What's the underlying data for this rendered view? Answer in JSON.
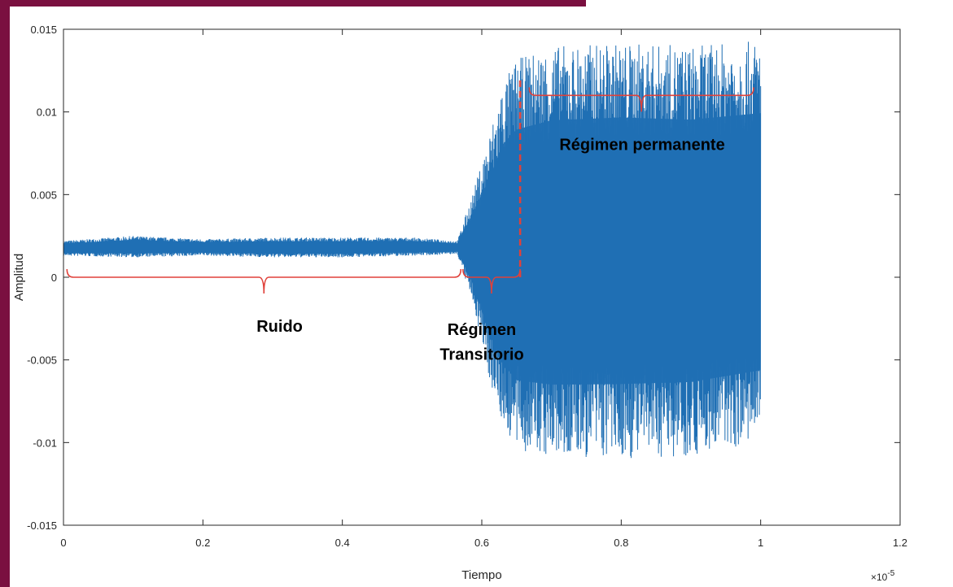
{
  "chart_data": {
    "type": "line",
    "title": "",
    "xlabel": "Tiempo",
    "ylabel": "Amplitud",
    "x_exponent_label": "×10",
    "x_exponent_power": "-5",
    "xlim": [
      0,
      1.2
    ],
    "ylim": [
      -0.015,
      0.015
    ],
    "x_ticks": [
      0,
      0.2,
      0.4,
      0.6,
      0.8,
      1,
      1.2
    ],
    "x_tick_labels": [
      "0",
      "0.2",
      "0.4",
      "0.6",
      "0.8",
      "1",
      "1.2"
    ],
    "y_ticks": [
      0.015,
      0.01,
      0.005,
      0,
      -0.005,
      -0.01,
      -0.015
    ],
    "y_tick_labels": [
      "0.015",
      "0.01",
      "0.005",
      "0",
      "-0.005",
      "-0.01",
      "-0.015"
    ],
    "grid": false,
    "series": [
      {
        "color": "#1f6fb4",
        "envelope": {
          "x": [
            0.0,
            0.1,
            0.2,
            0.3,
            0.4,
            0.5,
            0.565,
            0.59,
            0.61,
            0.63,
            0.65,
            0.7,
            0.8,
            0.9,
            1.0
          ],
          "upper": [
            0.0022,
            0.0025,
            0.0023,
            0.0024,
            0.0024,
            0.0024,
            0.0022,
            0.0055,
            0.0085,
            0.0118,
            0.0132,
            0.014,
            0.0142,
            0.014,
            0.0143
          ],
          "lower": [
            0.0013,
            0.0012,
            0.0013,
            0.0012,
            0.0012,
            0.0013,
            0.0014,
            -0.002,
            -0.006,
            -0.009,
            -0.0105,
            -0.011,
            -0.011,
            -0.0108,
            -0.01
          ]
        }
      }
    ],
    "annotations": [
      {
        "text": "Ruido",
        "x": 0.31,
        "y": -0.0033
      },
      {
        "text": "Régimen",
        "x": 0.6,
        "y": -0.0035
      },
      {
        "text": "Transitorio",
        "x": 0.6,
        "y": -0.005
      },
      {
        "text": "Régimen permanente",
        "x": 0.83,
        "y": 0.0077
      }
    ],
    "braces": [
      {
        "x1": 0.005,
        "x2": 0.57,
        "y": 0.0
      },
      {
        "x1": 0.573,
        "x2": 0.655,
        "y": 0.0
      },
      {
        "x1": 0.668,
        "x2": 0.99,
        "y": 0.011
      }
    ],
    "divider": {
      "x": 0.655,
      "y1": 0.0,
      "y2": 0.012,
      "color": "#e0413a"
    },
    "brace_color": "#e0413a"
  }
}
